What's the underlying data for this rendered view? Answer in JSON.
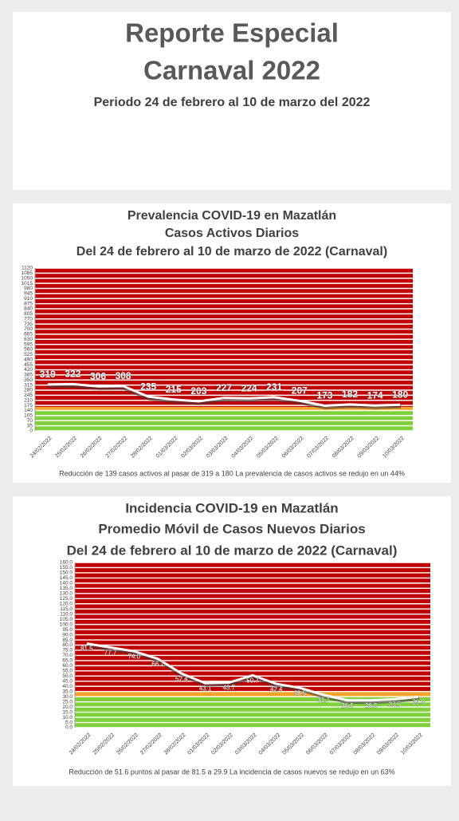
{
  "header": {
    "title_line1": "Reporte Especial",
    "title_line2": "Carnaval 2022",
    "subtitle": "Periodo 24 de febrero al 10 de marzo del 2022"
  },
  "chart_data": [
    {
      "type": "line",
      "title": "Prevalencia COVID-19 en Mazatlán",
      "subtitle": "Casos Activos Diarios",
      "period": "Del 24 de febrero al 10 de marzo de 2022 (Carnaval)",
      "categories": [
        "24/02/2022",
        "25/02/2022",
        "26/02/2022",
        "27/02/2022",
        "28/02/2022",
        "01/03/2022",
        "02/03/2022",
        "03/03/2022",
        "04/03/2022",
        "05/03/2022",
        "06/03/2022",
        "07/03/2022",
        "08/03/2022",
        "09/03/2022",
        "10/03/2022"
      ],
      "values": [
        319,
        322,
        306,
        308,
        235,
        215,
        203,
        227,
        224,
        231,
        207,
        173,
        182,
        174,
        180
      ],
      "color": "#ffffff",
      "ylim": [
        0,
        1120
      ],
      "yticks": [
        0,
        35,
        70,
        105,
        140,
        175,
        210,
        245,
        280,
        315,
        350,
        385,
        420,
        455,
        490,
        525,
        560,
        595,
        630,
        665,
        700,
        735,
        770,
        805,
        840,
        875,
        910,
        945,
        980,
        1015,
        1050,
        1085,
        1120
      ],
      "grid": true,
      "zones": [
        {
          "from": 0,
          "to": 140,
          "color": "#7fd13b"
        },
        {
          "from": 140,
          "to": 165,
          "color": "#f4a52a"
        },
        {
          "from": 165,
          "to": 1120,
          "color": "#c00000"
        }
      ],
      "note": "Reducción de 139 casos activos al pasar de 319 a 180  La prevalencia de casos activos se redujo en un 44%"
    },
    {
      "type": "line",
      "title": "Incidencia COVID-19 en Mazatlán",
      "subtitle": "Promedio Móvil de Casos Nuevos Diarios",
      "period": "Del 24 de febrero al 10 de marzo de 2022 (Carnaval)",
      "categories": [
        "24/02/2022",
        "25/02/2022",
        "26/02/2022",
        "27/02/2022",
        "28/02/2022",
        "01/03/2022",
        "02/03/2022",
        "03/03/2022",
        "04/03/2022",
        "05/03/2022",
        "06/03/2022",
        "07/03/2022",
        "08/03/2022",
        "09/03/2022",
        "10/03/2022"
      ],
      "values": [
        81.5,
        77.7,
        74.0,
        66.7,
        52.4,
        43.1,
        43.7,
        50.7,
        42.4,
        38.5,
        31.7,
        26.5,
        26.5,
        27.5,
        29.9
      ],
      "value_labels": [
        "81.5",
        "77.7",
        "74.0",
        "66.7",
        "52.4",
        "43.1",
        "43.7",
        "50.7",
        "42.4",
        "38.5",
        "31.7",
        "26.5",
        "26.5",
        "27.5",
        "29.9"
      ],
      "color": "#ffffff",
      "ylim": [
        0,
        160
      ],
      "yticks": [
        {
          "value": 0,
          "label": "0.0"
        },
        {
          "value": 5,
          "label": "5.0"
        },
        {
          "value": 10,
          "label": "10.0"
        },
        {
          "value": 15,
          "label": "15.0"
        },
        {
          "value": 20,
          "label": "20.0"
        },
        {
          "value": 25,
          "label": "25.0"
        },
        {
          "value": 30,
          "label": "30.0"
        },
        {
          "value": 35,
          "label": "35.0"
        },
        {
          "value": 40,
          "label": "40.0"
        },
        {
          "value": 45,
          "label": "45.0"
        },
        {
          "value": 50,
          "label": "50.0"
        },
        {
          "value": 55,
          "label": "55.0"
        },
        {
          "value": 60,
          "label": "60.0"
        },
        {
          "value": 65,
          "label": "65.0"
        },
        {
          "value": 70,
          "label": "70.0"
        },
        {
          "value": 75,
          "label": "75.0"
        },
        {
          "value": 80,
          "label": "80.0"
        },
        {
          "value": 85,
          "label": "85.0"
        },
        {
          "value": 90,
          "label": "90.0"
        },
        {
          "value": 95,
          "label": "95.0"
        },
        {
          "value": 100,
          "label": "100.0"
        },
        {
          "value": 105,
          "label": "105.0"
        },
        {
          "value": 110,
          "label": "110.0"
        },
        {
          "value": 115,
          "label": "115.0"
        },
        {
          "value": 120,
          "label": "120.0"
        },
        {
          "value": 125,
          "label": "125.0"
        },
        {
          "value": 130,
          "label": "130.0"
        },
        {
          "value": 135,
          "label": "135.0"
        },
        {
          "value": 140,
          "label": "140.0"
        },
        {
          "value": 145,
          "label": "145.0"
        },
        {
          "value": 150,
          "label": "150.0"
        },
        {
          "value": 155,
          "label": "155.0"
        },
        {
          "value": 160,
          "label": "160.0"
        }
      ],
      "grid": true,
      "zones": [
        {
          "from": 0,
          "to": 30,
          "color": "#7fd13b"
        },
        {
          "from": 30,
          "to": 35,
          "color": "#f4a52a"
        },
        {
          "from": 35,
          "to": 160,
          "color": "#c00000"
        }
      ],
      "note": "Reducción de 51.6 puntos al pasar de 81.5 a 29.9  La incidencia de casos nuevos se redujo en un 63%"
    }
  ]
}
